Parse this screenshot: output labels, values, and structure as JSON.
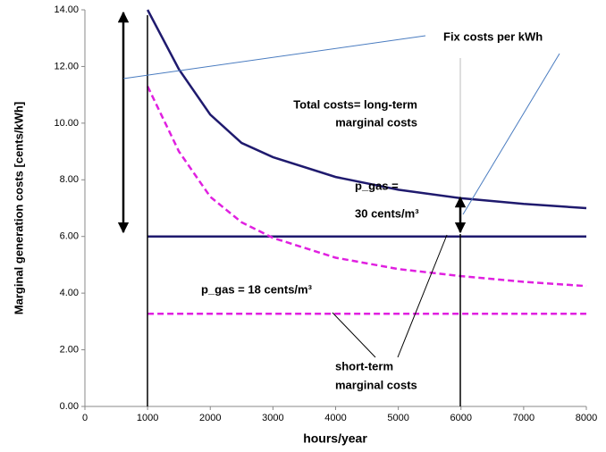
{
  "chart_data": {
    "type": "line",
    "x_label": "hours/year",
    "y_label": "Marginal generation costs [cents/kWh]",
    "x": [
      1000,
      1500,
      2000,
      2500,
      3000,
      4000,
      5000,
      6000,
      7000,
      8000
    ],
    "series": [
      {
        "color": "#1f1a6e",
        "dash": false,
        "values": [
          14.0,
          11.9,
          10.3,
          9.3,
          8.8,
          8.1,
          7.65,
          7.35,
          7.15,
          7.0
        ]
      },
      {
        "color": "#1f1a6e",
        "dash": false,
        "values": [
          6.0,
          6.0,
          6.0,
          6.0,
          6.0,
          6.0,
          6.0,
          6.0,
          6.0,
          6.0
        ]
      },
      {
        "color": "#e020e0",
        "dash": true,
        "values": [
          11.3,
          9.0,
          7.4,
          6.5,
          5.95,
          5.25,
          4.85,
          4.6,
          4.4,
          4.25
        ]
      },
      {
        "color": "#e020e0",
        "dash": true,
        "values": [
          3.27,
          3.27,
          3.27,
          3.27,
          3.27,
          3.27,
          3.27,
          3.27,
          3.27,
          3.27
        ]
      }
    ],
    "xlim": [
      0,
      8000
    ],
    "xticks": [
      0,
      1000,
      2000,
      3000,
      4000,
      5000,
      6000,
      7000,
      8000
    ],
    "ylim": [
      0,
      14
    ],
    "yticks": [
      {
        "value": 0,
        "label": "0.00"
      },
      {
        "value": 2,
        "label": "2.00"
      },
      {
        "value": 4,
        "label": "4.00"
      },
      {
        "value": 6,
        "label": "6.00"
      },
      {
        "value": 8,
        "label": "8.00"
      },
      {
        "value": 10,
        "label": "10.00"
      },
      {
        "value": 12,
        "label": "12.00"
      },
      {
        "value": 14,
        "label": "14.00"
      }
    ],
    "annotations": [
      {
        "lines": [
          "Fix costs per kWh"
        ]
      },
      {
        "lines": [
          "Total costs= long-term",
          "marginal costs"
        ]
      },
      {
        "lines": [
          "p_gas =",
          "30 cents/m³"
        ]
      },
      {
        "lines": [
          "p_gas = 18 cents/m³"
        ]
      },
      {
        "lines": [
          "short-term",
          "marginal costs"
        ]
      }
    ]
  }
}
